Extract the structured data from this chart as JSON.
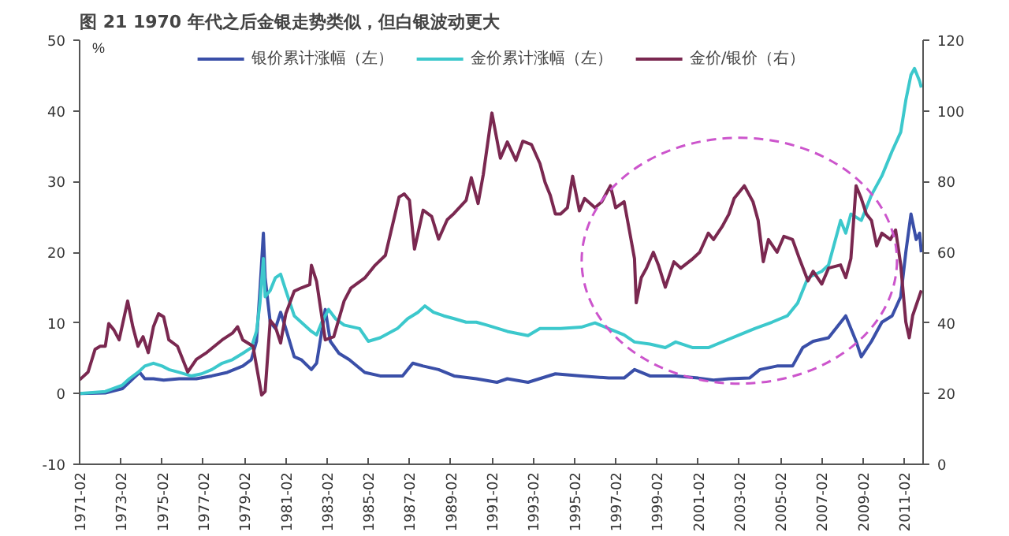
{
  "chart_data": {
    "type": "line",
    "title": "图 21   1970 年代之后金银走势类似，但白银波动更大",
    "ylabel": "%",
    "xlim": [
      "1971-02",
      "2012-01"
    ],
    "xticks": [
      "1971-02",
      "1973-02",
      "1975-02",
      "1977-02",
      "1979-02",
      "1981-02",
      "1983-02",
      "1985-02",
      "1987-02",
      "1989-02",
      "1991-02",
      "1993-02",
      "1995-02",
      "1997-02",
      "1999-02",
      "2001-02",
      "2003-02",
      "2005-02",
      "2007-02",
      "2009-02",
      "2011-02"
    ],
    "ylim": [
      -10,
      50
    ],
    "yticks": [
      -10,
      0,
      10,
      20,
      30,
      40,
      50
    ],
    "y2lim": [
      0,
      120
    ],
    "y2ticks": [
      0,
      20,
      40,
      60,
      80,
      100,
      120
    ],
    "grid": false,
    "legend": "top",
    "marker": "none",
    "line_style": "solid",
    "series": [
      {
        "name": "银价累计涨幅（左）",
        "color": "#3a4fa8",
        "x": [
          "1971-02",
          "1972-05",
          "1973-03",
          "1973-09",
          "1974-01",
          "1974-04",
          "1974-09",
          "1975-03",
          "1975-12",
          "1976-10",
          "1977-07",
          "1978-04",
          "1979-01",
          "1979-06",
          "1979-09",
          "1979-11",
          "1980-01",
          "1980-02",
          "1980-05",
          "1980-08",
          "1980-11",
          "1981-02",
          "1981-07",
          "1981-11",
          "1982-05",
          "1982-08",
          "1983-01",
          "1983-04",
          "1983-09",
          "1984-03",
          "1984-12",
          "1985-09",
          "1986-10",
          "1987-04",
          "1987-10",
          "1988-07",
          "1989-04",
          "1990-05",
          "1991-05",
          "1991-11",
          "1992-11",
          "1994-03",
          "1995-06",
          "1996-10",
          "1997-07",
          "1998-01",
          "1998-10",
          "2000-01",
          "2001-02",
          "2001-11",
          "2002-08",
          "2003-08",
          "2004-02",
          "2004-12",
          "2005-09",
          "2006-03",
          "2006-09",
          "2007-06",
          "2008-04",
          "2008-10",
          "2009-01",
          "2009-07",
          "2010-01",
          "2010-07",
          "2010-12",
          "2011-03",
          "2011-06",
          "2011-09",
          "2011-11",
          "2011-12"
        ],
        "values": [
          0,
          0.1,
          0.7,
          2.1,
          3.0,
          2.1,
          2.1,
          1.9,
          2.1,
          2.1,
          2.5,
          3.0,
          3.9,
          4.8,
          7.4,
          14.6,
          22.7,
          16.4,
          10.1,
          9.2,
          11.5,
          9.2,
          5.2,
          4.8,
          3.4,
          4.3,
          11.9,
          7.4,
          5.7,
          4.8,
          3.0,
          2.5,
          2.5,
          4.3,
          3.9,
          3.4,
          2.5,
          2.1,
          1.6,
          2.1,
          1.6,
          2.8,
          2.5,
          2.2,
          2.2,
          3.4,
          2.5,
          2.5,
          2.2,
          1.9,
          2.1,
          2.2,
          3.4,
          3.9,
          3.9,
          6.5,
          7.4,
          7.9,
          11.0,
          7.4,
          5.2,
          7.4,
          10.1,
          11.0,
          13.7,
          20.0,
          25.4,
          21.8,
          22.7,
          20.0
        ]
      },
      {
        "name": "金价累计涨幅（左）",
        "color": "#3cc8cc",
        "x": [
          "1971-02",
          "1972-05",
          "1973-03",
          "1973-07",
          "1973-12",
          "1974-04",
          "1974-09",
          "1975-02",
          "1975-06",
          "1975-12",
          "1976-07",
          "1977-01",
          "1977-07",
          "1978-01",
          "1978-07",
          "1979-01",
          "1979-06",
          "1979-09",
          "1979-11",
          "1980-01",
          "1980-02",
          "1980-05",
          "1980-08",
          "1980-11",
          "1981-02",
          "1981-07",
          "1981-11",
          "1982-05",
          "1982-08",
          "1982-11",
          "1983-03",
          "1983-07",
          "1983-12",
          "1984-09",
          "1985-02",
          "1985-09",
          "1986-07",
          "1987-01",
          "1987-07",
          "1987-11",
          "1988-04",
          "1988-10",
          "1989-04",
          "1989-11",
          "1990-05",
          "1990-11",
          "1991-11",
          "1992-11",
          "1993-06",
          "1994-06",
          "1995-06",
          "1996-02",
          "1996-10",
          "1997-07",
          "1998-01",
          "1998-10",
          "1999-07",
          "2000-01",
          "2000-11",
          "2001-08",
          "2002-05",
          "2003-02",
          "2003-11",
          "2004-09",
          "2005-06",
          "2005-12",
          "2006-06",
          "2007-02",
          "2007-06",
          "2007-09",
          "2008-01",
          "2008-04",
          "2008-07",
          "2009-01",
          "2009-07",
          "2010-01",
          "2010-07",
          "2010-12",
          "2011-03",
          "2011-06",
          "2011-08",
          "2011-11",
          "2011-12"
        ],
        "values": [
          0,
          0.3,
          1.2,
          2.1,
          3.0,
          3.9,
          4.3,
          3.9,
          3.4,
          3.0,
          2.5,
          2.8,
          3.4,
          4.3,
          4.8,
          5.7,
          6.5,
          8.8,
          12.8,
          19.1,
          13.7,
          14.6,
          16.4,
          16.9,
          14.6,
          11.0,
          10.1,
          8.8,
          8.3,
          10.1,
          11.9,
          10.6,
          9.7,
          9.2,
          7.4,
          7.9,
          9.2,
          10.6,
          11.5,
          12.4,
          11.5,
          11.0,
          10.6,
          10.1,
          10.1,
          9.7,
          8.8,
          8.2,
          9.2,
          9.2,
          9.4,
          10.0,
          9.2,
          8.3,
          7.3,
          7.0,
          6.5,
          7.3,
          6.5,
          6.5,
          7.4,
          8.3,
          9.2,
          10.1,
          11.0,
          12.8,
          16.4,
          17.3,
          18.2,
          20.9,
          24.5,
          22.7,
          25.4,
          24.5,
          28.1,
          30.8,
          34.3,
          37.0,
          41.5,
          45.1,
          46.0,
          44.2,
          43.3
        ]
      },
      {
        "name": "金价/银价（右）",
        "color": "#7a2850",
        "axis": "y2",
        "x": [
          "1971-02",
          "1971-07",
          "1971-11",
          "1972-02",
          "1972-05",
          "1972-07",
          "1972-10",
          "1973-01",
          "1973-06",
          "1973-09",
          "1973-12",
          "1974-03",
          "1974-06",
          "1974-09",
          "1974-12",
          "1975-03",
          "1975-06",
          "1975-11",
          "1976-05",
          "1976-10",
          "1977-04",
          "1978-01",
          "1978-07",
          "1978-10",
          "1979-01",
          "1979-07",
          "1979-12",
          "1980-02",
          "1980-05",
          "1980-08",
          "1980-11",
          "1981-02",
          "1981-07",
          "1981-11",
          "1982-04",
          "1982-05",
          "1982-08",
          "1983-01",
          "1983-06",
          "1983-12",
          "1984-04",
          "1984-12",
          "1985-06",
          "1985-12",
          "1986-08",
          "1986-11",
          "1987-02",
          "1987-05",
          "1987-10",
          "1988-03",
          "1988-07",
          "1988-12",
          "1989-04",
          "1989-11",
          "1990-02",
          "1990-06",
          "1990-09",
          "1991-02",
          "1991-07",
          "1991-11",
          "1992-04",
          "1992-08",
          "1993-01",
          "1993-06",
          "1993-09",
          "1993-12",
          "1994-03",
          "1994-06",
          "1994-10",
          "1995-01",
          "1995-05",
          "1995-08",
          "1996-02",
          "1996-06",
          "1996-11",
          "1997-02",
          "1997-07",
          "1997-10",
          "1998-01",
          "1998-02",
          "1998-05",
          "1998-08",
          "1998-12",
          "1999-03",
          "1999-07",
          "1999-12",
          "2000-04",
          "2000-11",
          "2001-03",
          "2001-08",
          "2001-11",
          "2002-04",
          "2002-08",
          "2002-11",
          "2003-05",
          "2003-10",
          "2004-01",
          "2004-04",
          "2004-07",
          "2004-12",
          "2005-04",
          "2005-09",
          "2006-01",
          "2006-06",
          "2006-09",
          "2007-02",
          "2007-06",
          "2008-01",
          "2008-04",
          "2008-07",
          "2008-10",
          "2009-01",
          "2009-04",
          "2009-07",
          "2009-10",
          "2010-01",
          "2010-06",
          "2010-09",
          "2010-12",
          "2011-03",
          "2011-05",
          "2011-07",
          "2011-12"
        ],
        "values": [
          23.9,
          26.1,
          32.5,
          33.4,
          33.4,
          39.8,
          38.0,
          35.2,
          46.2,
          38.9,
          33.4,
          36.1,
          31.6,
          38.9,
          42.6,
          41.7,
          35.2,
          33.4,
          26.1,
          29.7,
          31.6,
          35.2,
          37.1,
          38.9,
          35.2,
          33.4,
          19.6,
          20.6,
          40.7,
          38.9,
          34.3,
          42.6,
          49.0,
          49.9,
          50.8,
          56.3,
          51.7,
          35.2,
          36.1,
          46.2,
          49.9,
          52.7,
          56.3,
          59.1,
          75.6,
          76.5,
          74.7,
          60.9,
          71.9,
          70.1,
          63.7,
          69.2,
          71.0,
          74.7,
          81.1,
          73.8,
          82.0,
          99.4,
          86.6,
          91.2,
          86.0,
          91.4,
          90.5,
          85.1,
          79.7,
          76.1,
          70.8,
          70.8,
          72.6,
          81.5,
          71.7,
          75.2,
          72.6,
          74.3,
          78.8,
          72.6,
          74.3,
          66.3,
          58.2,
          45.7,
          52.8,
          55.5,
          60.0,
          56.4,
          50.1,
          57.3,
          55.5,
          58.2,
          60.0,
          65.4,
          63.6,
          67.2,
          70.8,
          75.2,
          78.8,
          74.3,
          69.0,
          57.3,
          63.6,
          60.0,
          64.5,
          63.6,
          58.2,
          51.9,
          54.6,
          51.0,
          55.5,
          56.4,
          52.8,
          58.2,
          78.8,
          75.2,
          70.8,
          69.0,
          61.8,
          65.4,
          63.6,
          66.3,
          56.4,
          40.3,
          35.8,
          42.1,
          49.2
        ]
      }
    ]
  }
}
